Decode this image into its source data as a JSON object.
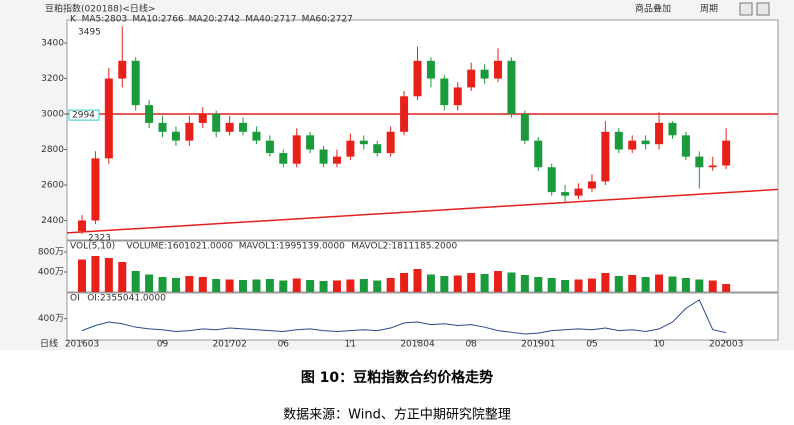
{
  "chart_data": {
    "type": "candlestick",
    "title": "豆粕指数(020188)<日线>",
    "toolbar": [
      "商品叠加",
      "周期"
    ],
    "legend": [
      "K",
      "MA5:2803",
      "MA10:2766",
      "MA20:2742",
      "MA40:2717",
      "MA60:2727"
    ],
    "legend_colors": [
      "#000000",
      "#000000",
      "#e07000",
      "#1a1a9a",
      "#1a1a9a",
      "#e070e0"
    ],
    "period_label": "日线",
    "categories": [
      "201603",
      null,
      null,
      null,
      null,
      null,
      "09",
      null,
      null,
      null,
      null,
      "201702",
      null,
      null,
      null,
      "06",
      null,
      null,
      null,
      null,
      "11",
      null,
      null,
      null,
      null,
      "201804",
      null,
      null,
      null,
      "08",
      null,
      null,
      null,
      null,
      "201901",
      null,
      null,
      null,
      "05",
      null,
      null,
      null,
      null,
      "10",
      null,
      null,
      null,
      null,
      "202003"
    ],
    "open": [
      2340,
      2400,
      2750,
      3200,
      3300,
      3050,
      2950,
      2900,
      2850,
      2950,
      3000,
      2900,
      2950,
      2900,
      2850,
      2780,
      2720,
      2880,
      2800,
      2720,
      2760,
      2850,
      2830,
      2780,
      2900,
      3100,
      3300,
      3200,
      3050,
      3150,
      3250,
      3200,
      3300,
      3000,
      2850,
      2700,
      2560,
      2540,
      2580,
      2620,
      2900,
      2800,
      2850,
      2830,
      2950,
      2880,
      2760,
      2700,
      2710
    ],
    "high": [
      2430,
      2790,
      3260,
      3495,
      3320,
      3080,
      2990,
      2930,
      2990,
      3040,
      3020,
      2990,
      2980,
      2930,
      2880,
      2800,
      2920,
      2900,
      2820,
      2800,
      2890,
      2880,
      2850,
      2930,
      3130,
      3380,
      3320,
      3220,
      3180,
      3290,
      3280,
      3370,
      3320,
      3020,
      2870,
      2720,
      2600,
      2610,
      2660,
      2960,
      2920,
      2880,
      2880,
      3010,
      2960,
      2900,
      2790,
      2760,
      2920
    ],
    "low": [
      2323,
      2380,
      2720,
      3150,
      3020,
      2920,
      2870,
      2820,
      2820,
      2920,
      2870,
      2880,
      2880,
      2830,
      2760,
      2700,
      2700,
      2780,
      2700,
      2700,
      2740,
      2800,
      2760,
      2760,
      2880,
      3080,
      3150,
      3020,
      3020,
      3130,
      3170,
      3180,
      2980,
      2830,
      2680,
      2540,
      2500,
      2520,
      2560,
      2600,
      2780,
      2780,
      2800,
      2800,
      2860,
      2740,
      2580,
      2680,
      2690
    ],
    "close": [
      2400,
      2750,
      3200,
      3300,
      3050,
      2950,
      2900,
      2850,
      2950,
      3000,
      2900,
      2950,
      2900,
      2850,
      2780,
      2720,
      2880,
      2800,
      2720,
      2760,
      2850,
      2830,
      2780,
      2900,
      3100,
      3300,
      3200,
      3050,
      3150,
      3250,
      3200,
      3300,
      3000,
      2850,
      2700,
      2560,
      2540,
      2580,
      2620,
      2900,
      2800,
      2850,
      2830,
      2950,
      2880,
      2760,
      2700,
      2710,
      2850
    ],
    "up_color": "#e8201a",
    "down_color": "#1a9a3a",
    "ylim": [
      2290,
      3530
    ],
    "yticks": [
      2400,
      2600,
      2800,
      3000,
      3200,
      3400
    ],
    "hline": 3000,
    "trendline": [
      2330,
      2575
    ],
    "line_color": "#e02020",
    "annotations": [
      {
        "label": "3495",
        "value": 3495
      },
      {
        "label": "2323",
        "value": 2323
      },
      {
        "label": "2994",
        "value": 2994
      }
    ],
    "volume_legend": [
      "VOL(5,10)",
      "VOLUME:1601021.0000",
      "MAVOL1:1995139.0000",
      "MAVOL2:1811185.2000"
    ],
    "volume_legend_colors": [
      "#333333",
      "#333333",
      "#1a1a9a",
      "#e07000"
    ],
    "volume": [
      6500000,
      7200000,
      6800000,
      6000000,
      4200000,
      3500000,
      3000000,
      2800000,
      3200000,
      3000000,
      2600000,
      2500000,
      2400000,
      2500000,
      2600000,
      2300000,
      2700000,
      2400000,
      2200000,
      2300000,
      2500000,
      2600000,
      2300000,
      2800000,
      3800000,
      4600000,
      3500000,
      3200000,
      3300000,
      3800000,
      3600000,
      4200000,
      3900000,
      3400000,
      3000000,
      2800000,
      2400000,
      2500000,
      2700000,
      3800000,
      3200000,
      3400000,
      3000000,
      3500000,
      3100000,
      2800000,
      2500000,
      2300000,
      1601021
    ],
    "vol_ylim": [
      0,
      10000000
    ],
    "vol_yticks": [
      {
        "value": 8000000,
        "label": "800万"
      },
      {
        "value": 4000000,
        "label": "400万"
      }
    ],
    "oi_legend": [
      "OI",
      "OI:2355041.0000"
    ],
    "oi": [
      2600000,
      3200000,
      3600000,
      3400000,
      3000000,
      2800000,
      2700000,
      2500000,
      2600000,
      2800000,
      2700000,
      2900000,
      2800000,
      2700000,
      2600000,
      2500000,
      2700000,
      2800000,
      2600000,
      2500000,
      2600000,
      2700000,
      2600000,
      2900000,
      3500000,
      3600000,
      3300000,
      3400000,
      3200000,
      3300000,
      3000000,
      2600000,
      2400000,
      2200000,
      2300000,
      2600000,
      2700000,
      2800000,
      2700000,
      2900000,
      2600000,
      2700000,
      2500000,
      2800000,
      3600000,
      5200000,
      6200000,
      2700000,
      2355041
    ],
    "oi_color": "#2a4a8a",
    "oi_ylim": [
      1500000,
      7000000
    ],
    "oi_yticks": [
      {
        "value": 4000000,
        "label": "400万"
      }
    ],
    "caption": "图 10：豆粕指数合约价格走势",
    "source": "数据来源：Wind、方正中期研究院整理"
  }
}
